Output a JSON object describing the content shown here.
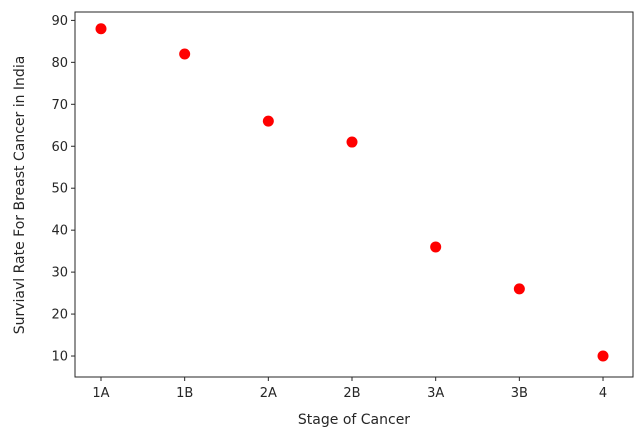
{
  "chart_data": {
    "type": "scatter",
    "title": "",
    "xlabel": "Stage of Cancer",
    "ylabel": "Surviavl Rate For Breast Cancer in India",
    "categories": [
      "1A",
      "1B",
      "2A",
      "2B",
      "3A",
      "3B",
      "4"
    ],
    "values": [
      88,
      82,
      66,
      61,
      36,
      26,
      10
    ],
    "ylim": [
      5,
      92
    ],
    "yticks": [
      10,
      20,
      30,
      40,
      50,
      60,
      70,
      80,
      90
    ],
    "marker_color": "#ff0000",
    "grid": false,
    "legend": "none"
  }
}
